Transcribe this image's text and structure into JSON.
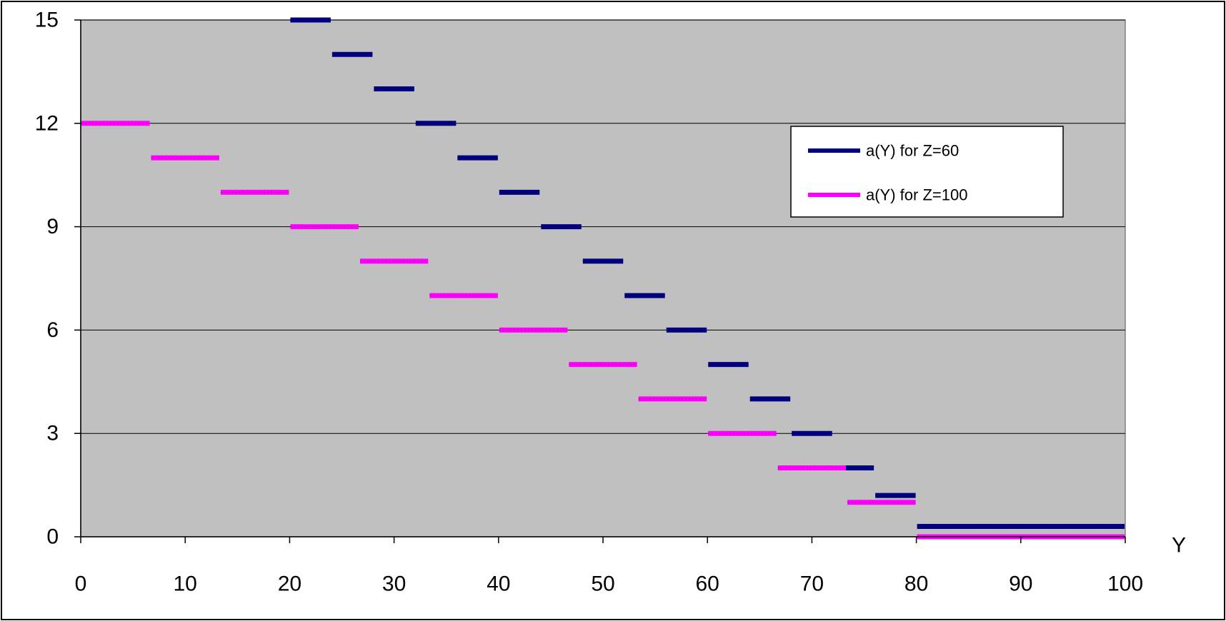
{
  "chart_data": {
    "type": "line",
    "title": "",
    "xlabel": "Y",
    "ylabel": "",
    "xlim": [
      0,
      100
    ],
    "ylim": [
      0,
      15
    ],
    "x_ticks": [
      0,
      10,
      20,
      30,
      40,
      50,
      60,
      70,
      80,
      90,
      100
    ],
    "x_tick_labels": [
      "0",
      "10",
      "20",
      "30",
      "40",
      "50",
      "60",
      "70",
      "80",
      "90",
      "100"
    ],
    "y_ticks": [
      0,
      3,
      6,
      9,
      12,
      15
    ],
    "y_tick_labels": [
      "0",
      "3",
      "6",
      "9",
      "12",
      "15"
    ],
    "grid": "horizontal",
    "legend_position": "right",
    "plot_background": "#c0c0c0",
    "series": [
      {
        "name": "a(Y) for Z=60",
        "color": "#000080",
        "segments": [
          {
            "x0": 20,
            "x1": 24,
            "y": 15
          },
          {
            "x0": 24,
            "x1": 28,
            "y": 14
          },
          {
            "x0": 28,
            "x1": 32,
            "y": 13
          },
          {
            "x0": 32,
            "x1": 36,
            "y": 12
          },
          {
            "x0": 36,
            "x1": 40,
            "y": 11
          },
          {
            "x0": 40,
            "x1": 44,
            "y": 10
          },
          {
            "x0": 44,
            "x1": 48,
            "y": 9
          },
          {
            "x0": 48,
            "x1": 52,
            "y": 8
          },
          {
            "x0": 52,
            "x1": 56,
            "y": 7
          },
          {
            "x0": 56,
            "x1": 60,
            "y": 6
          },
          {
            "x0": 60,
            "x1": 64,
            "y": 5
          },
          {
            "x0": 64,
            "x1": 68,
            "y": 4
          },
          {
            "x0": 68,
            "x1": 72,
            "y": 3
          },
          {
            "x0": 72,
            "x1": 76,
            "y": 2
          },
          {
            "x0": 76,
            "x1": 80,
            "y": 1.2
          },
          {
            "x0": 80,
            "x1": 100,
            "y": 0.3
          }
        ]
      },
      {
        "name": "a(Y) for Z=100",
        "color": "#ff00ff",
        "segments": [
          {
            "x0": 0,
            "x1": 6.67,
            "y": 12
          },
          {
            "x0": 6.67,
            "x1": 13.33,
            "y": 11
          },
          {
            "x0": 13.33,
            "x1": 20,
            "y": 10
          },
          {
            "x0": 20,
            "x1": 26.67,
            "y": 9
          },
          {
            "x0": 26.67,
            "x1": 33.33,
            "y": 8
          },
          {
            "x0": 33.33,
            "x1": 40,
            "y": 7
          },
          {
            "x0": 40,
            "x1": 46.67,
            "y": 6
          },
          {
            "x0": 46.67,
            "x1": 53.33,
            "y": 5
          },
          {
            "x0": 53.33,
            "x1": 60,
            "y": 4
          },
          {
            "x0": 60,
            "x1": 66.67,
            "y": 3
          },
          {
            "x0": 66.67,
            "x1": 73.33,
            "y": 2
          },
          {
            "x0": 73.33,
            "x1": 80,
            "y": 1
          },
          {
            "x0": 80,
            "x1": 100,
            "y": 0
          }
        ]
      }
    ]
  }
}
